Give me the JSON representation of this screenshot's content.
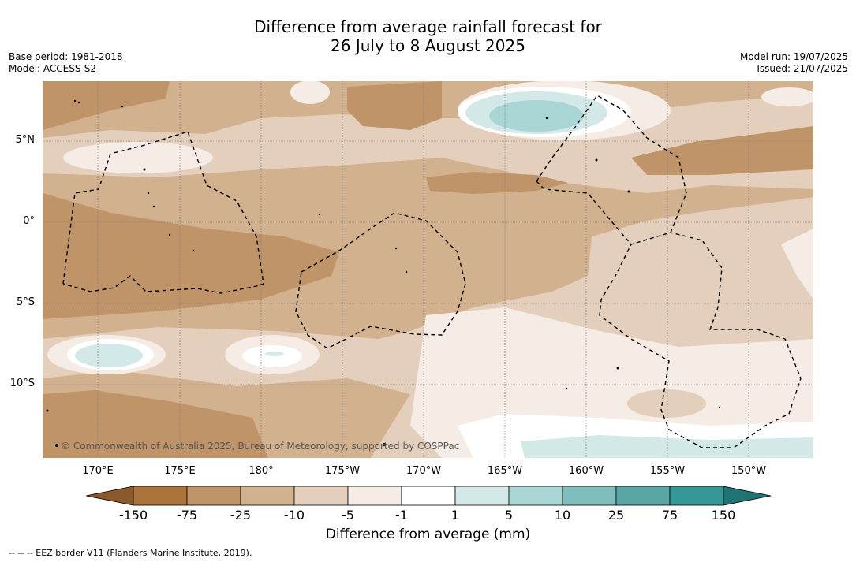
{
  "header": {
    "title_line1": "Difference from average rainfall forecast for",
    "title_line2": "26 July to 8 August 2025",
    "base_period": "Base period: 1981-2018",
    "model": "Model: ACCESS-S2",
    "model_run": "Model run: 19/07/2025",
    "issued": "Issued: 21/07/2025"
  },
  "map": {
    "lon_labels": [
      "170°E",
      "175°E",
      "180°",
      "175°W",
      "170°W",
      "165°W",
      "160°W",
      "155°W",
      "150°W"
    ],
    "lat_labels": [
      "5°N",
      "0°",
      "5°S",
      "10°S"
    ],
    "copyright": "© Commonwealth of Australia 2025, Bureau of Meteorology, supported by COSPPac"
  },
  "legend": {
    "ticks": [
      "-150",
      "-75",
      "-25",
      "-10",
      "-5",
      "-1",
      "1",
      "5",
      "10",
      "25",
      "75",
      "150"
    ],
    "colors": [
      "#8b5a2b",
      "#a97339",
      "#bf9468",
      "#d2b18e",
      "#e4cfbd",
      "#f4ece5",
      "#ffffff",
      "#d3e9e8",
      "#a9d5d4",
      "#80bebd",
      "#58a7a5",
      "#339896",
      "#1f7372"
    ],
    "title": "Difference from average (mm)"
  },
  "footnote": "--  --  -- EEZ border V11 (Flanders Marine Institute, 2019)."
}
